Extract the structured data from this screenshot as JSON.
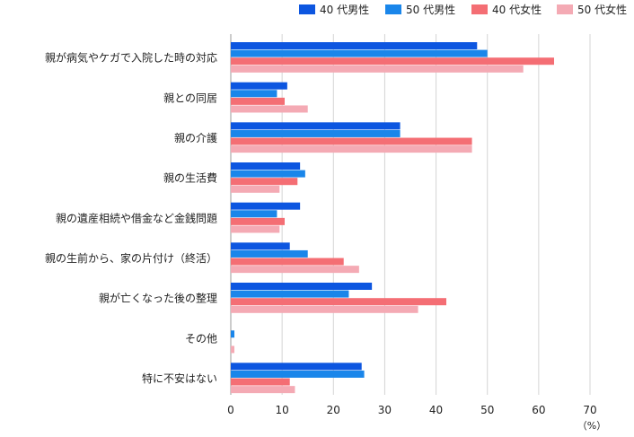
{
  "chart_data": {
    "type": "bar",
    "orientation": "horizontal",
    "categories": [
      "親が病気やケガで入院した時の対応",
      "親との同居",
      "親の介護",
      "親の生活費",
      "親の遺産相続や借金など金銭問題",
      "親の生前から、家の片付け（終活）",
      "親が亡くなった後の整理",
      "その他",
      "特に不安はない"
    ],
    "series": [
      {
        "name": "40 代男性",
        "color": "#0d56e0",
        "values": [
          48,
          11,
          33,
          13.5,
          13.5,
          11.5,
          27.5,
          0,
          25.5
        ]
      },
      {
        "name": "50 代男性",
        "color": "#1a86ea",
        "values": [
          50,
          9,
          33,
          14.5,
          9,
          15,
          23,
          0.7,
          26
        ]
      },
      {
        "name": "40 代女性",
        "color": "#f46e74",
        "values": [
          63,
          10.5,
          47,
          13,
          10.5,
          22,
          42,
          0,
          11.5
        ]
      },
      {
        "name": "50 代女性",
        "color": "#f4aab4",
        "values": [
          57,
          15,
          47,
          9.5,
          9.5,
          25,
          36.5,
          0.7,
          12.5
        ]
      }
    ],
    "xlim": [
      0,
      70
    ],
    "xticks": [
      0,
      10,
      20,
      30,
      40,
      50,
      60,
      70
    ],
    "unit_label": "（%）",
    "grid": true,
    "legend_position": "top-right"
  }
}
